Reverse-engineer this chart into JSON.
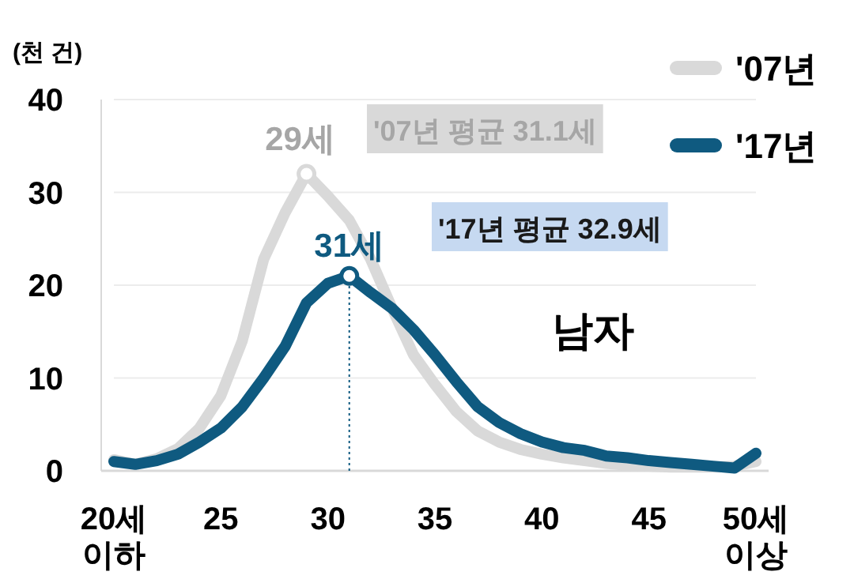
{
  "chart_data": {
    "type": "line",
    "ylabel": "(천 건)",
    "x": [
      20,
      21,
      22,
      23,
      24,
      25,
      26,
      27,
      28,
      29,
      30,
      31,
      32,
      33,
      34,
      35,
      36,
      37,
      38,
      39,
      40,
      41,
      42,
      43,
      44,
      45,
      46,
      47,
      48,
      49,
      50
    ],
    "series": [
      {
        "name": "'07년",
        "color": "#d9d9d9",
        "values": [
          1.2,
          0.7,
          1.3,
          2.4,
          4.6,
          8.1,
          14,
          22.8,
          27.8,
          32,
          29.6,
          27,
          22.8,
          17.5,
          12.5,
          9.3,
          6.4,
          4.3,
          3.1,
          2.3,
          1.8,
          1.4,
          1.1,
          0.8,
          0.6,
          0.5,
          0.4,
          0.4,
          0.4,
          0.5,
          1.0
        ]
      },
      {
        "name": "'17년",
        "color": "#0f5a80",
        "values": [
          1.0,
          0.7,
          1.1,
          1.8,
          3.1,
          4.6,
          6.9,
          10,
          13.4,
          18.1,
          20.2,
          21,
          19.2,
          17.5,
          15.2,
          12.5,
          9.6,
          6.9,
          5.2,
          4.0,
          3.1,
          2.5,
          2.2,
          1.6,
          1.4,
          1.1,
          0.9,
          0.7,
          0.5,
          0.3,
          1.9
        ]
      }
    ],
    "xlim": [
      20,
      50
    ],
    "xticks": [
      {
        "value": 20,
        "label": "20세\n이하"
      },
      25,
      30,
      35,
      40,
      45,
      {
        "value": 50,
        "label": "50세\n이상"
      }
    ],
    "ylim": [
      0,
      40
    ],
    "yticks": [
      0,
      10,
      20,
      30,
      40
    ],
    "grid": "y",
    "legend": "top right",
    "ref_lines": [
      {
        "axis": "x",
        "value": 31,
        "label": null,
        "color": "#0f5a80",
        "line_style": "dotted"
      }
    ],
    "annotations": [
      {
        "text": "29세",
        "x": 29,
        "y": 32
      },
      {
        "text": "31세",
        "x": 31,
        "y": 21
      },
      "'07년 평균 31.1세",
      "'17년 평균 32.9세",
      "남자"
    ]
  }
}
